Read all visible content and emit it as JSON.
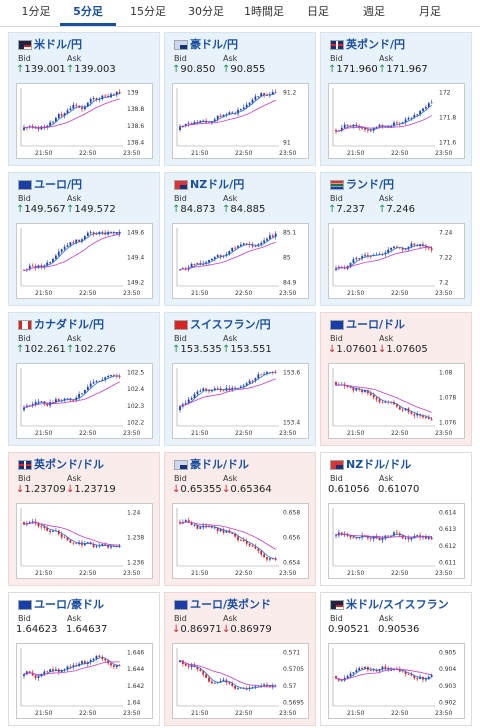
{
  "tabs": [
    {
      "label": "1分足",
      "active": false
    },
    {
      "label": "5分足",
      "active": true
    },
    {
      "label": "15分足",
      "active": false
    },
    {
      "label": "30分足",
      "active": false
    },
    {
      "label": "1時間足",
      "active": false
    },
    {
      "label": "日足",
      "active": false
    },
    {
      "label": "週足",
      "active": false
    },
    {
      "label": "月足",
      "active": false
    }
  ],
  "labels": {
    "bid": "Bid",
    "ask": "Ask"
  },
  "colors": {
    "up_arrow": "#1a8f4a",
    "down_arrow": "#d4202a",
    "bull": "#1a3faa",
    "bear": "#d4202a",
    "ma_short": "#2a6fd6",
    "ma_long": "#c43cc4",
    "pair_title": "#1a4fa0"
  },
  "arrows": {
    "up": "↑",
    "down": "↓"
  },
  "pairs": [
    {
      "name": "米ドル/円",
      "flag": "us",
      "trend": "up",
      "bid": "139.001",
      "ask": "139.003",
      "xticks": [
        "21:50",
        "22:50",
        "23:50"
      ],
      "yticks": [
        "139",
        "138.8",
        "138.6",
        "138.4"
      ]
    },
    {
      "name": "豪ドル/円",
      "flag": "au",
      "trend": "up",
      "bid": "90.850",
      "ask": "90.855",
      "xticks": [
        "21:50",
        "22:50",
        "23:50"
      ],
      "yticks": [
        "91.2",
        "91"
      ]
    },
    {
      "name": "英ポンド/円",
      "flag": "gb",
      "trend": "up",
      "bid": "171.960",
      "ask": "171.967",
      "xticks": [
        "21:50",
        "22:50",
        "23:50"
      ],
      "yticks": [
        "172",
        "171.8",
        "171.6"
      ]
    },
    {
      "name": "ユーロ/円",
      "flag": "eu",
      "trend": "up",
      "bid": "149.567",
      "ask": "149.572",
      "xticks": [
        "21:50",
        "22:50",
        "23:50"
      ],
      "yticks": [
        "149.6",
        "149.4",
        "149.2"
      ]
    },
    {
      "name": "NZドル/円",
      "flag": "nz",
      "trend": "up",
      "bid": "84.873",
      "ask": "84.885",
      "xticks": [
        "21:50",
        "22:50",
        "23:50"
      ],
      "yticks": [
        "85.1",
        "85",
        "84.9"
      ]
    },
    {
      "name": "ランド/円",
      "flag": "za",
      "trend": "up",
      "bid": "7.237",
      "ask": "7.246",
      "xticks": [
        "21:50",
        "22:50",
        "23:50"
      ],
      "yticks": [
        "7.24",
        "7.22",
        "7.2"
      ]
    },
    {
      "name": "カナダドル/円",
      "flag": "ca",
      "trend": "up",
      "bid": "102.261",
      "ask": "102.276",
      "xticks": [
        "21:50",
        "22:50",
        "23:50"
      ],
      "yticks": [
        "102.5",
        "102.4",
        "102.3",
        "102.2"
      ]
    },
    {
      "name": "スイスフラン/円",
      "flag": "ch",
      "trend": "up",
      "bid": "153.535",
      "ask": "153.551",
      "xticks": [
        "21:50",
        "22:50",
        "23:50"
      ],
      "yticks": [
        "153.6",
        "153.4"
      ]
    },
    {
      "name": "ユーロ/ドル",
      "flag": "eu",
      "trend": "down",
      "bid": "1.07601",
      "ask": "1.07605",
      "xticks": [
        "21:50",
        "22:50",
        "23:50"
      ],
      "yticks": [
        "1.08",
        "1.078",
        "1.076"
      ]
    },
    {
      "name": "英ポンド/ドル",
      "flag": "gb",
      "trend": "down",
      "bid": "1.23709",
      "ask": "1.23719",
      "xticks": [
        "21:50",
        "22:50",
        "23:50"
      ],
      "yticks": [
        "1.24",
        "1.238",
        "1.236"
      ]
    },
    {
      "name": "豪ドル/ドル",
      "flag": "au",
      "trend": "down",
      "bid": "0.65355",
      "ask": "0.65364",
      "xticks": [
        "21:50",
        "22:50",
        "23:50"
      ],
      "yticks": [
        "0.658",
        "0.656",
        "0.654"
      ]
    },
    {
      "name": "NZドル/ドル",
      "flag": "nz",
      "trend": "flat",
      "bid": "0.61056",
      "ask": "0.61070",
      "xticks": [
        "21:50",
        "22:50",
        "23:50"
      ],
      "yticks": [
        "0.614",
        "0.613",
        "0.612",
        "0.611"
      ]
    },
    {
      "name": "ユーロ/豪ドル",
      "flag": "eu",
      "trend": "flat",
      "bid": "1.64623",
      "ask": "1.64637",
      "xticks": [
        "21:50",
        "22:50",
        "23:50"
      ],
      "yticks": [
        "1.646",
        "1.644",
        "1.642",
        "1.64"
      ]
    },
    {
      "name": "ユーロ/英ポンド",
      "flag": "eu",
      "trend": "down",
      "bid": "0.86971",
      "ask": "0.86979",
      "xticks": [
        "21:50",
        "22:50",
        "23:50"
      ],
      "yticks": [
        "0.571",
        "0.5705",
        "0.57",
        "0.5695"
      ]
    },
    {
      "name": "米ドル/スイスフラン",
      "flag": "us",
      "trend": "flat",
      "bid": "0.90521",
      "ask": "0.90536",
      "xticks": [
        "21:50",
        "22:50",
        "23:50"
      ],
      "yticks": [
        "0.905",
        "0.904",
        "0.903",
        "0.902"
      ]
    }
  ]
}
